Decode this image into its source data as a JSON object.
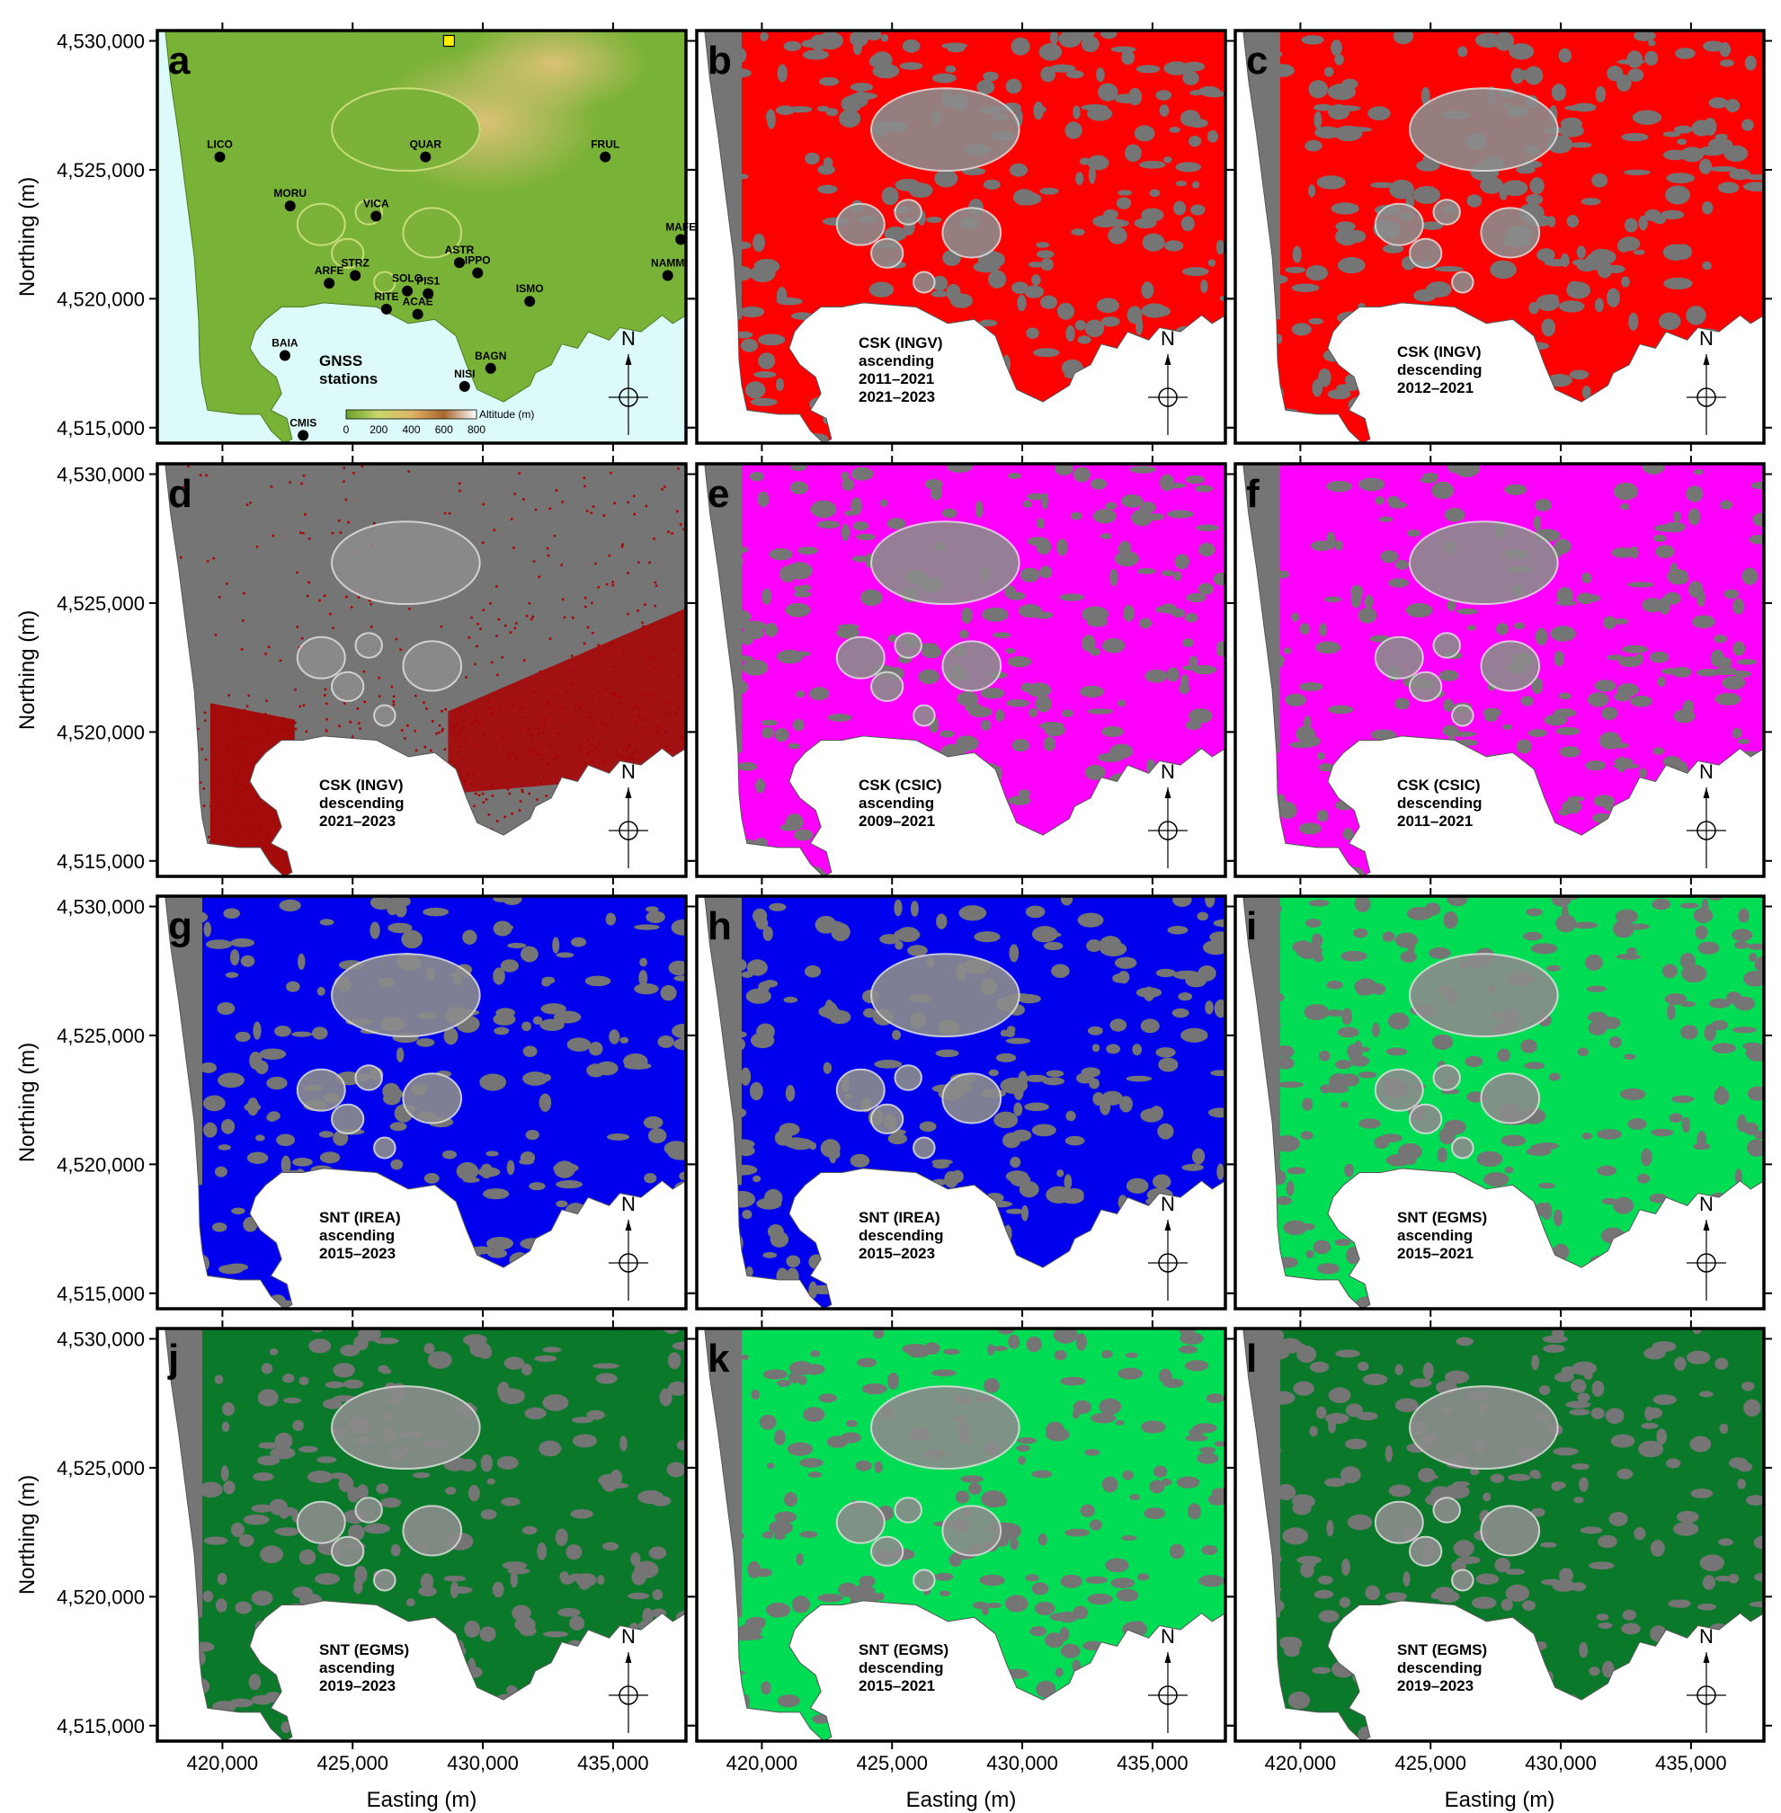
{
  "axes": {
    "xlabel": "Easting (m)",
    "ylabel": "Northing (m)",
    "x_range": [
      417500,
      437800
    ],
    "y_range": [
      4514400,
      4530400
    ],
    "x_ticks": [
      420000,
      425000,
      430000,
      435000
    ],
    "y_ticks": [
      4515000,
      4520000,
      4525000,
      4530000
    ],
    "x_tick_labels": [
      "420,000",
      "425,000",
      "430,000",
      "435,000"
    ],
    "y_tick_labels": [
      "4,515,000",
      "4,520,000",
      "4,525,000",
      "4,530,000"
    ]
  },
  "north_arrow_label": "N",
  "colors": {
    "sea": "#dcfaf9",
    "terrain": "#757575",
    "csk_ingv": "#ff0000",
    "csk_ingv_2021": "#aa0000",
    "csk_csic": "#ff00ff",
    "snt_irea": "#0000ee",
    "egms_light": "#00dd55",
    "egms_dark": "#0a7a2a"
  },
  "panels": [
    {
      "letter": "a",
      "type": "dem",
      "caption": [
        "GNSS",
        "stations"
      ],
      "legend": {
        "label": "Altitude (m)",
        "ticks": [
          "0",
          "200",
          "400",
          "600",
          "800"
        ]
      },
      "stations": [
        {
          "name": "LICO",
          "e": 419900,
          "n": 4525500
        },
        {
          "name": "QUAR",
          "e": 427800,
          "n": 4525500
        },
        {
          "name": "FRUL",
          "e": 434700,
          "n": 4525500
        },
        {
          "name": "MORU",
          "e": 422600,
          "n": 4523600
        },
        {
          "name": "VICA",
          "e": 425900,
          "n": 4523200
        },
        {
          "name": "MAFE",
          "e": 437600,
          "n": 4522300
        },
        {
          "name": "ASTR",
          "e": 429100,
          "n": 4521400
        },
        {
          "name": "IPPO",
          "e": 429800,
          "n": 4521000
        },
        {
          "name": "STRZ",
          "e": 425100,
          "n": 4520900
        },
        {
          "name": "ARFE",
          "e": 424100,
          "n": 4520600
        },
        {
          "name": "NAMM",
          "e": 437100,
          "n": 4520900
        },
        {
          "name": "SOLO",
          "e": 427100,
          "n": 4520300
        },
        {
          "name": "PIS1",
          "e": 427900,
          "n": 4520200
        },
        {
          "name": "ISMO",
          "e": 431800,
          "n": 4519900
        },
        {
          "name": "RITE",
          "e": 426300,
          "n": 4519600
        },
        {
          "name": "ACAE",
          "e": 427500,
          "n": 4519400
        },
        {
          "name": "BAIA",
          "e": 422400,
          "n": 4517800
        },
        {
          "name": "BAGN",
          "e": 430300,
          "n": 4517300
        },
        {
          "name": "NISI",
          "e": 429300,
          "n": 4516600
        },
        {
          "name": "CMIS",
          "e": 423100,
          "n": 4514700
        }
      ],
      "reference_marker": {
        "e": 428700,
        "n": 4530000
      }
    },
    {
      "letter": "b",
      "type": "insar",
      "color_key": "csk_ingv",
      "coverage": 0.78,
      "caption": [
        "CSK (INGV)",
        "ascending",
        "2011–2021",
        "2021–2023"
      ]
    },
    {
      "letter": "c",
      "type": "insar",
      "color_key": "csk_ingv",
      "coverage": 0.74,
      "caption": [
        "CSK (INGV)",
        "descending",
        "2012–2021"
      ]
    },
    {
      "letter": "d",
      "type": "insar",
      "color_key": "csk_ingv_2021",
      "coverage": 0.22,
      "caption": [
        "CSK (INGV)",
        "descending",
        "2021–2023"
      ]
    },
    {
      "letter": "e",
      "type": "insar",
      "color_key": "csk_csic",
      "coverage": 0.8,
      "caption": [
        "CSK (CSIC)",
        "ascending",
        "2009–2021"
      ]
    },
    {
      "letter": "f",
      "type": "insar",
      "color_key": "csk_csic",
      "coverage": 0.8,
      "caption": [
        "CSK (CSIC)",
        "descending",
        "2011–2021"
      ]
    },
    {
      "letter": "g",
      "type": "insar",
      "color_key": "snt_irea",
      "coverage": 0.78,
      "caption": [
        "SNT (IREA)",
        "ascending",
        "2015–2023"
      ]
    },
    {
      "letter": "h",
      "type": "insar",
      "color_key": "snt_irea",
      "coverage": 0.78,
      "caption": [
        "SNT (IREA)",
        "descending",
        "2015–2023"
      ]
    },
    {
      "letter": "i",
      "type": "insar",
      "color_key": "egms_light",
      "coverage": 0.8,
      "caption": [
        "SNT (EGMS)",
        "ascending",
        "2015–2021"
      ]
    },
    {
      "letter": "j",
      "type": "insar",
      "color_key": "egms_dark",
      "coverage": 0.8,
      "caption": [
        "SNT (EGMS)",
        "ascending",
        "2019–2023"
      ]
    },
    {
      "letter": "k",
      "type": "insar",
      "color_key": "egms_light",
      "coverage": 0.82,
      "caption": [
        "SNT (EGMS)",
        "descending",
        "2015–2021"
      ]
    },
    {
      "letter": "l",
      "type": "insar",
      "color_key": "egms_dark",
      "coverage": 0.82,
      "caption": [
        "SNT (EGMS)",
        "descending",
        "2019–2023"
      ]
    }
  ]
}
